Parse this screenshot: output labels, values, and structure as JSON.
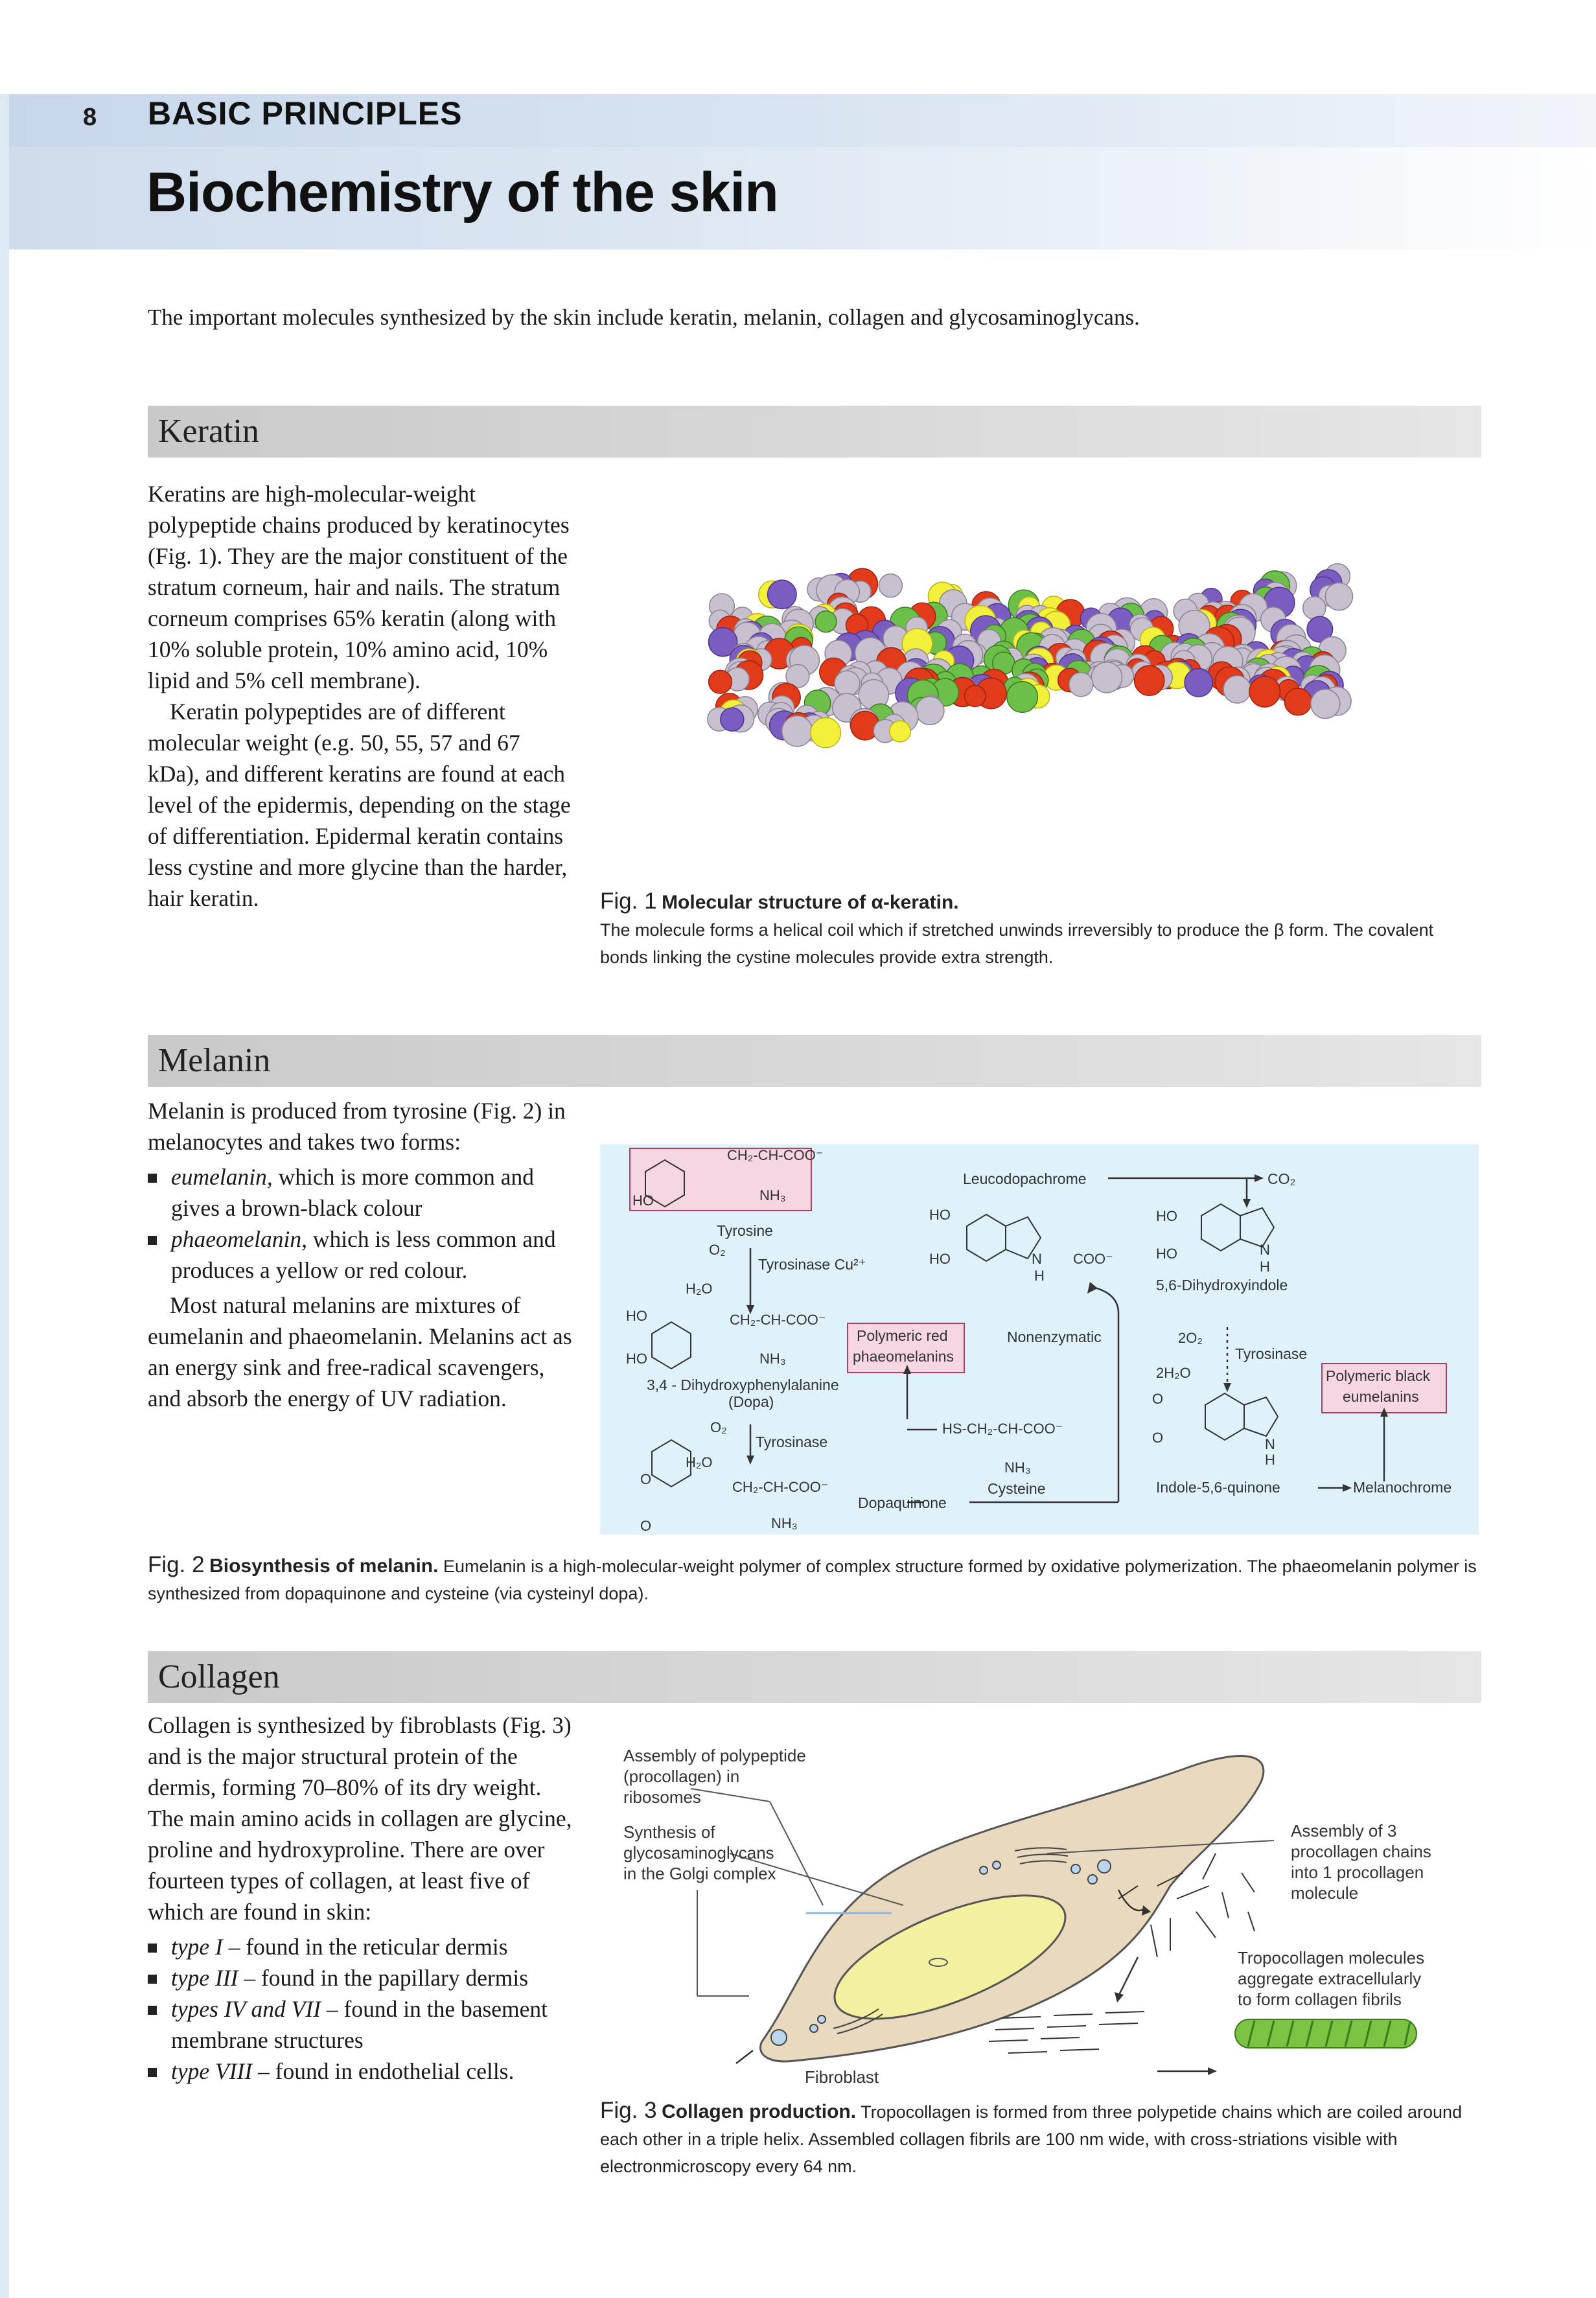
{
  "header": {
    "page_number": "8",
    "section_label": "BASIC PRINCIPLES",
    "title": "Biochemistry of the skin"
  },
  "intro": "The important molecules synthesized by the skin include keratin, melanin, collagen and glycosaminoglycans.",
  "keratin": {
    "heading": "Keratin",
    "para1": "Keratins are high-molecular-weight polypeptide chains produced by keratinocytes (Fig. 1). They are the major constituent of the stratum corneum, hair and nails. The stratum corneum comprises 65% keratin (along with 10% soluble protein, 10% amino acid, 10% lipid and 5% cell membrane).",
    "para2": "Keratin polypeptides are of different molecular weight (e.g. 50, 55, 57 and 67 kDa), and different keratins are found at each level of the epidermis, depending on the stage of differentiation. Epidermal keratin contains less cystine and more glycine than the harder, hair keratin.",
    "fig_label": "Fig. 1",
    "fig_title": "Molecular structure of α-keratin.",
    "fig_caption": "The molecule forms a helical coil which if stretched unwinds irreversibly to produce the β form. The covalent bonds linking the cystine molecules provide extra strength."
  },
  "melanin": {
    "heading": "Melanin",
    "para1": "Melanin is produced from tyrosine (Fig. 2) in melanocytes and takes two forms:",
    "bullets": [
      {
        "term": "eumelanin,",
        "rest": " which is more common and gives a brown-black colour"
      },
      {
        "term": "phaeomelanin,",
        "rest": " which is less common and produces a yellow or red colour."
      }
    ],
    "para2": "Most natural melanins are mixtures of eumelanin and phaeomelanin. Melanins act as an energy sink and free-radical scavengers, and absorb the energy of UV radiation.",
    "fig_label": "Fig. 2",
    "fig_title": "Biosynthesis of melanin.",
    "fig_caption": "Eumelanin is a high-molecular-weight polymer of complex structure formed by oxidative polymerization. The phaeomelanin polymer is synthesized from dopaquinone and cysteine (via cysteinyl dopa).",
    "diagram": {
      "tyrosine_formula": "CH₂-CH-COO⁻",
      "nh3": "NH₃",
      "ho": "HO",
      "tyrosine": "Tyrosine",
      "o2": "O₂",
      "h2o": "H₂O",
      "tyrosinase_cu": "Tyrosinase Cu²⁺",
      "tyrosinase": "Tyrosinase",
      "dopa": "3,4 - Dihydroxyphenylalanine",
      "dopa_short": "(Dopa)",
      "polymeric_red": "Polymeric red",
      "phaeomelanins": "phaeomelanins",
      "leucodopachrome": "Leucodopachrome",
      "co2": "CO₂",
      "coo": "COO⁻",
      "n": "N",
      "h": "H",
      "nonenzymatic": "Nonenzymatic",
      "cysteine_formula": "HS-CH₂-CH-COO⁻",
      "cysteine": "Cysteine",
      "dopaquinone": "Dopaquinone",
      "dihydroxyindole": "5,6-Dihydroxyindole",
      "two_o2": "2O₂",
      "two_h2o": "2H₂O",
      "polymeric_black": "Polymeric black",
      "eumelanins": "eumelanins",
      "o": "O",
      "indolequinone": "Indole-5,6-quinone",
      "melanochrome": "Melanochrome"
    }
  },
  "collagen": {
    "heading": "Collagen",
    "para1": "Collagen is synthesized by fibroblasts (Fig. 3) and is the major structural protein of the dermis, forming 70–80% of its dry weight. The main amino acids in collagen are glycine, proline and hydroxyproline. There are over fourteen types of collagen, at least five of which are found in skin:",
    "bullets": [
      {
        "term": "type I",
        "rest": " – found in the reticular dermis"
      },
      {
        "term": "type III",
        "rest": " – found in the papillary dermis"
      },
      {
        "term": "types IV and VII",
        "rest": " – found in the basement membrane structures"
      },
      {
        "term": "type VIII",
        "rest": " – found in endothelial cells."
      }
    ],
    "fig_label": "Fig. 3",
    "fig_title": "Collagen production.",
    "fig_caption": "Tropocollagen is formed from three polypetide chains which are coiled around each other in a triple helix. Assembled collagen fibrils are 100 nm wide, with cross-striations visible with electronmicroscopy every 64 nm.",
    "diagram": {
      "assembly_poly_1": "Assembly of polypeptide",
      "assembly_poly_2": "(procollagen) in",
      "assembly_poly_3": "ribosomes",
      "synthesis_1": "Synthesis of",
      "synthesis_2": "glycosaminoglycans",
      "synthesis_3": "in the Golgi complex",
      "assembly3_1": "Assembly of 3",
      "assembly3_2": "procollagen chains",
      "assembly3_3": "into 1 procollagen",
      "assembly3_4": "molecule",
      "tropo_1": "Tropocollagen molecules",
      "tropo_2": "aggregate extracellularly",
      "tropo_3": "to form collagen fibrils",
      "fibroblast": "Fibroblast"
    }
  },
  "colors": {
    "header_band": "#cfdcec",
    "section_bar": "#d4d4d4",
    "diagram_bg": "#dff1fa",
    "pink_box": "#f6d6e2",
    "cell_fill": "#e8d9bf",
    "nucleus_fill": "#f3f0a0",
    "fibril_green": "#7cc243"
  }
}
